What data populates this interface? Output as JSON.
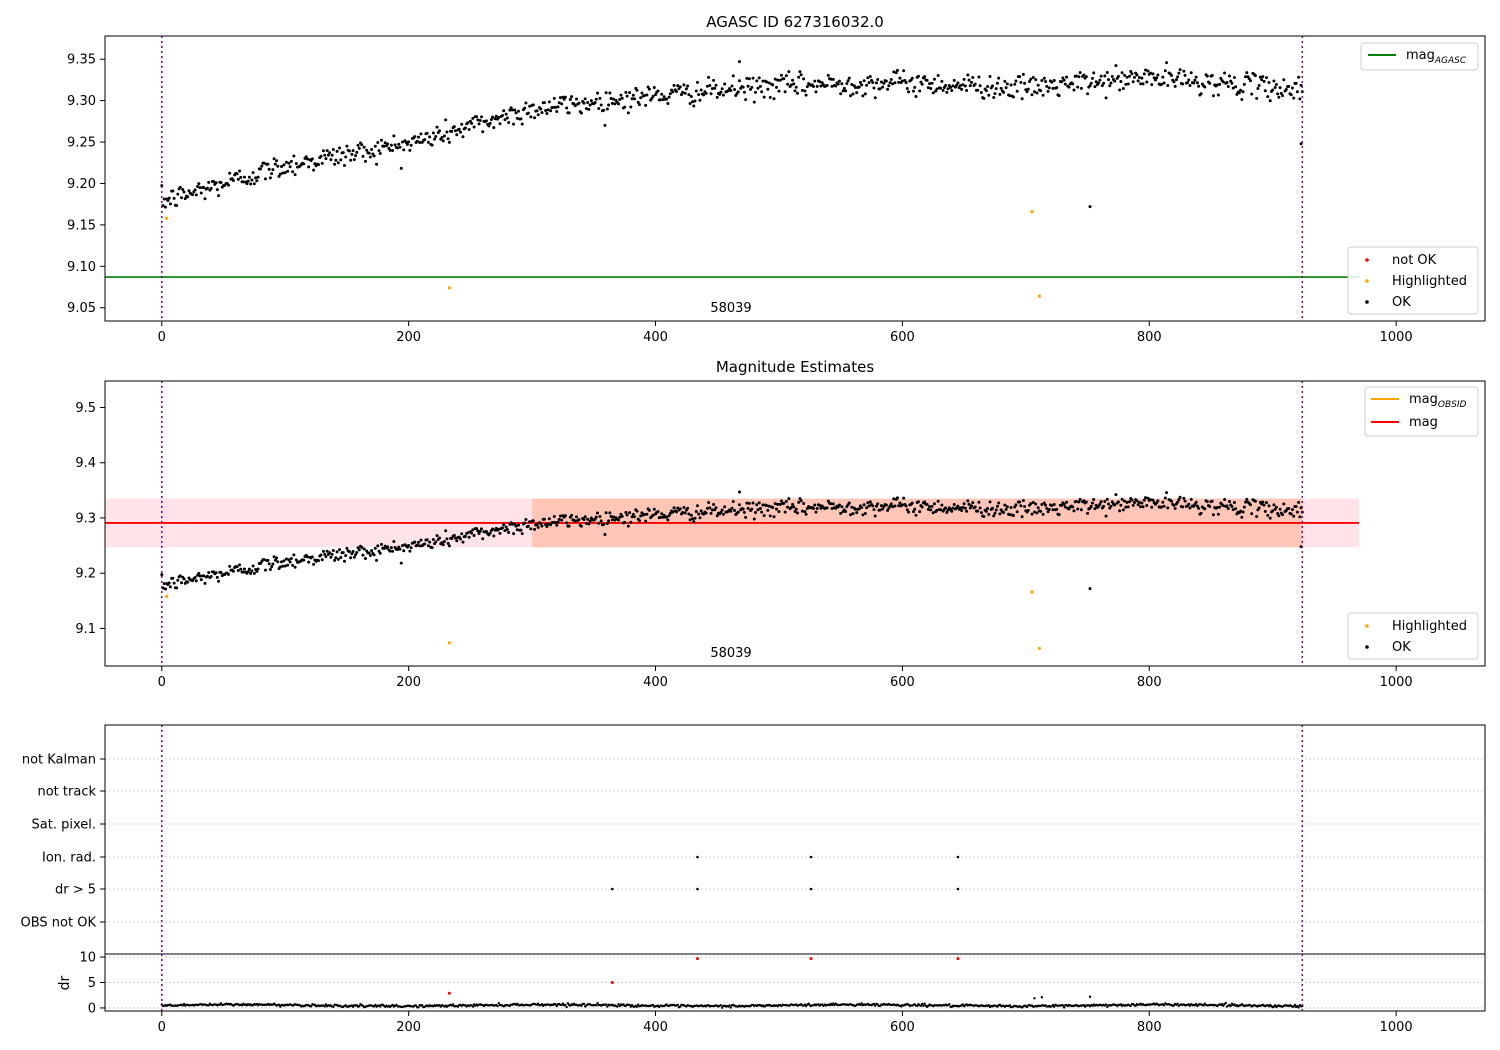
{
  "chart_data": [
    {
      "type": "scatter",
      "title": "AGASC ID 627316032.0",
      "xlim": [
        -46,
        1072
      ],
      "ylim": [
        9.034,
        9.378
      ],
      "xticks": [
        "0",
        "200",
        "400",
        "600",
        "800",
        "1000"
      ],
      "yticks": [
        "9.05",
        "9.10",
        "9.15",
        "9.20",
        "9.25",
        "9.30",
        "9.35"
      ],
      "ytick_values": [
        9.05,
        9.1,
        9.15,
        9.2,
        9.25,
        9.3,
        9.35
      ],
      "vlines_x": [
        0,
        924
      ],
      "hline": {
        "name": "mag_AGASC",
        "y": 9.087,
        "color": "#008000"
      },
      "annotation": {
        "text": "58039",
        "x": 461,
        "y": 9.04
      },
      "legend_upper": [
        {
          "label": "mag",
          "sub": "AGASC",
          "color": "#008000"
        }
      ],
      "legend_lower": [
        {
          "label": "not OK",
          "color": "#ff0000"
        },
        {
          "label": "Highlighted",
          "color": "#ffa500"
        },
        {
          "label": "OK",
          "color": "#000000"
        }
      ],
      "trend": {
        "description": "OK points follow y(x)",
        "x": [
          0,
          100,
          200,
          300,
          400,
          500,
          600,
          700,
          800,
          924
        ],
        "y": [
          9.178,
          9.222,
          9.248,
          9.29,
          9.306,
          9.318,
          9.322,
          9.315,
          9.328,
          9.313
        ],
        "scatter_sd": 0.007,
        "x_step": 1
      },
      "outliers_ok": [
        {
          "x": 752,
          "y": 9.172
        },
        {
          "x": 923,
          "y": 9.248
        },
        {
          "x": 468,
          "y": 9.347
        }
      ],
      "highlighted": [
        {
          "x": 4,
          "y": 9.158
        },
        {
          "x": 233,
          "y": 9.074
        },
        {
          "x": 705,
          "y": 9.166
        },
        {
          "x": 711,
          "y": 9.064
        }
      ]
    },
    {
      "type": "scatter",
      "title": "Magnitude Estimates",
      "xlim": [
        -46,
        1072
      ],
      "ylim": [
        9.032,
        9.548
      ],
      "xticks": [
        "0",
        "200",
        "400",
        "600",
        "800",
        "1000"
      ],
      "yticks": [
        "9.1",
        "9.2",
        "9.3",
        "9.4",
        "9.5"
      ],
      "ytick_values": [
        9.1,
        9.2,
        9.3,
        9.4,
        9.5
      ],
      "vlines_x": [
        0,
        924
      ],
      "mag": {
        "y": 9.291,
        "band": [
          9.247,
          9.335
        ],
        "x_range": [
          -46,
          970
        ],
        "color": "#ff0000",
        "band_color": "#ffc0cb"
      },
      "mag_obsid": {
        "y": 9.291,
        "band": [
          9.247,
          9.335
        ],
        "x_range": [
          300,
          924
        ],
        "color": "#ffa500",
        "band_color": "#ffa07a"
      },
      "annotation": {
        "text": "58039",
        "x": 461,
        "y": 9.045
      },
      "legend_upper": [
        {
          "label": "mag",
          "sub": "OBSID",
          "color": "#ffa500"
        },
        {
          "label": "mag",
          "sub": "",
          "color": "#ff0000"
        }
      ],
      "legend_lower": [
        {
          "label": "Highlighted",
          "color": "#ffa500"
        },
        {
          "label": "OK",
          "color": "#000000"
        }
      ]
    },
    {
      "type": "scatter",
      "title": "",
      "xlim": [
        -46,
        1072
      ],
      "rows": [
        "not Kalman",
        "not track",
        "Sat. pixel.",
        "Ion. rad.",
        "dr > 5",
        "OBS not OK"
      ],
      "flags": {
        "Ion. rad.": [
          434,
          526,
          645
        ],
        "dr > 5": [
          365,
          434,
          526,
          645
        ]
      },
      "dr": {
        "ylabel": "dr",
        "ylim": [
          -0.6,
          10.6
        ],
        "yticks": [
          "0",
          "5",
          "10"
        ],
        "ytick_values": [
          0,
          5,
          10
        ],
        "baseline": {
          "x": [
            0,
            924
          ],
          "y": [
            0.5,
            0.5
          ],
          "sd": 0.12
        },
        "not_ok": [
          {
            "x": 233,
            "y": 2.9
          },
          {
            "x": 365,
            "y": 5.0
          },
          {
            "x": 434,
            "y": 9.7
          },
          {
            "x": 526,
            "y": 9.7
          },
          {
            "x": 645,
            "y": 9.7
          }
        ],
        "ok_high": [
          {
            "x": 707,
            "y": 1.9
          },
          {
            "x": 713,
            "y": 2.1
          },
          {
            "x": 752,
            "y": 2.2
          }
        ]
      },
      "xticks": [
        "0",
        "200",
        "400",
        "600",
        "800",
        "1000"
      ],
      "vlines_x": [
        0,
        924
      ]
    }
  ]
}
